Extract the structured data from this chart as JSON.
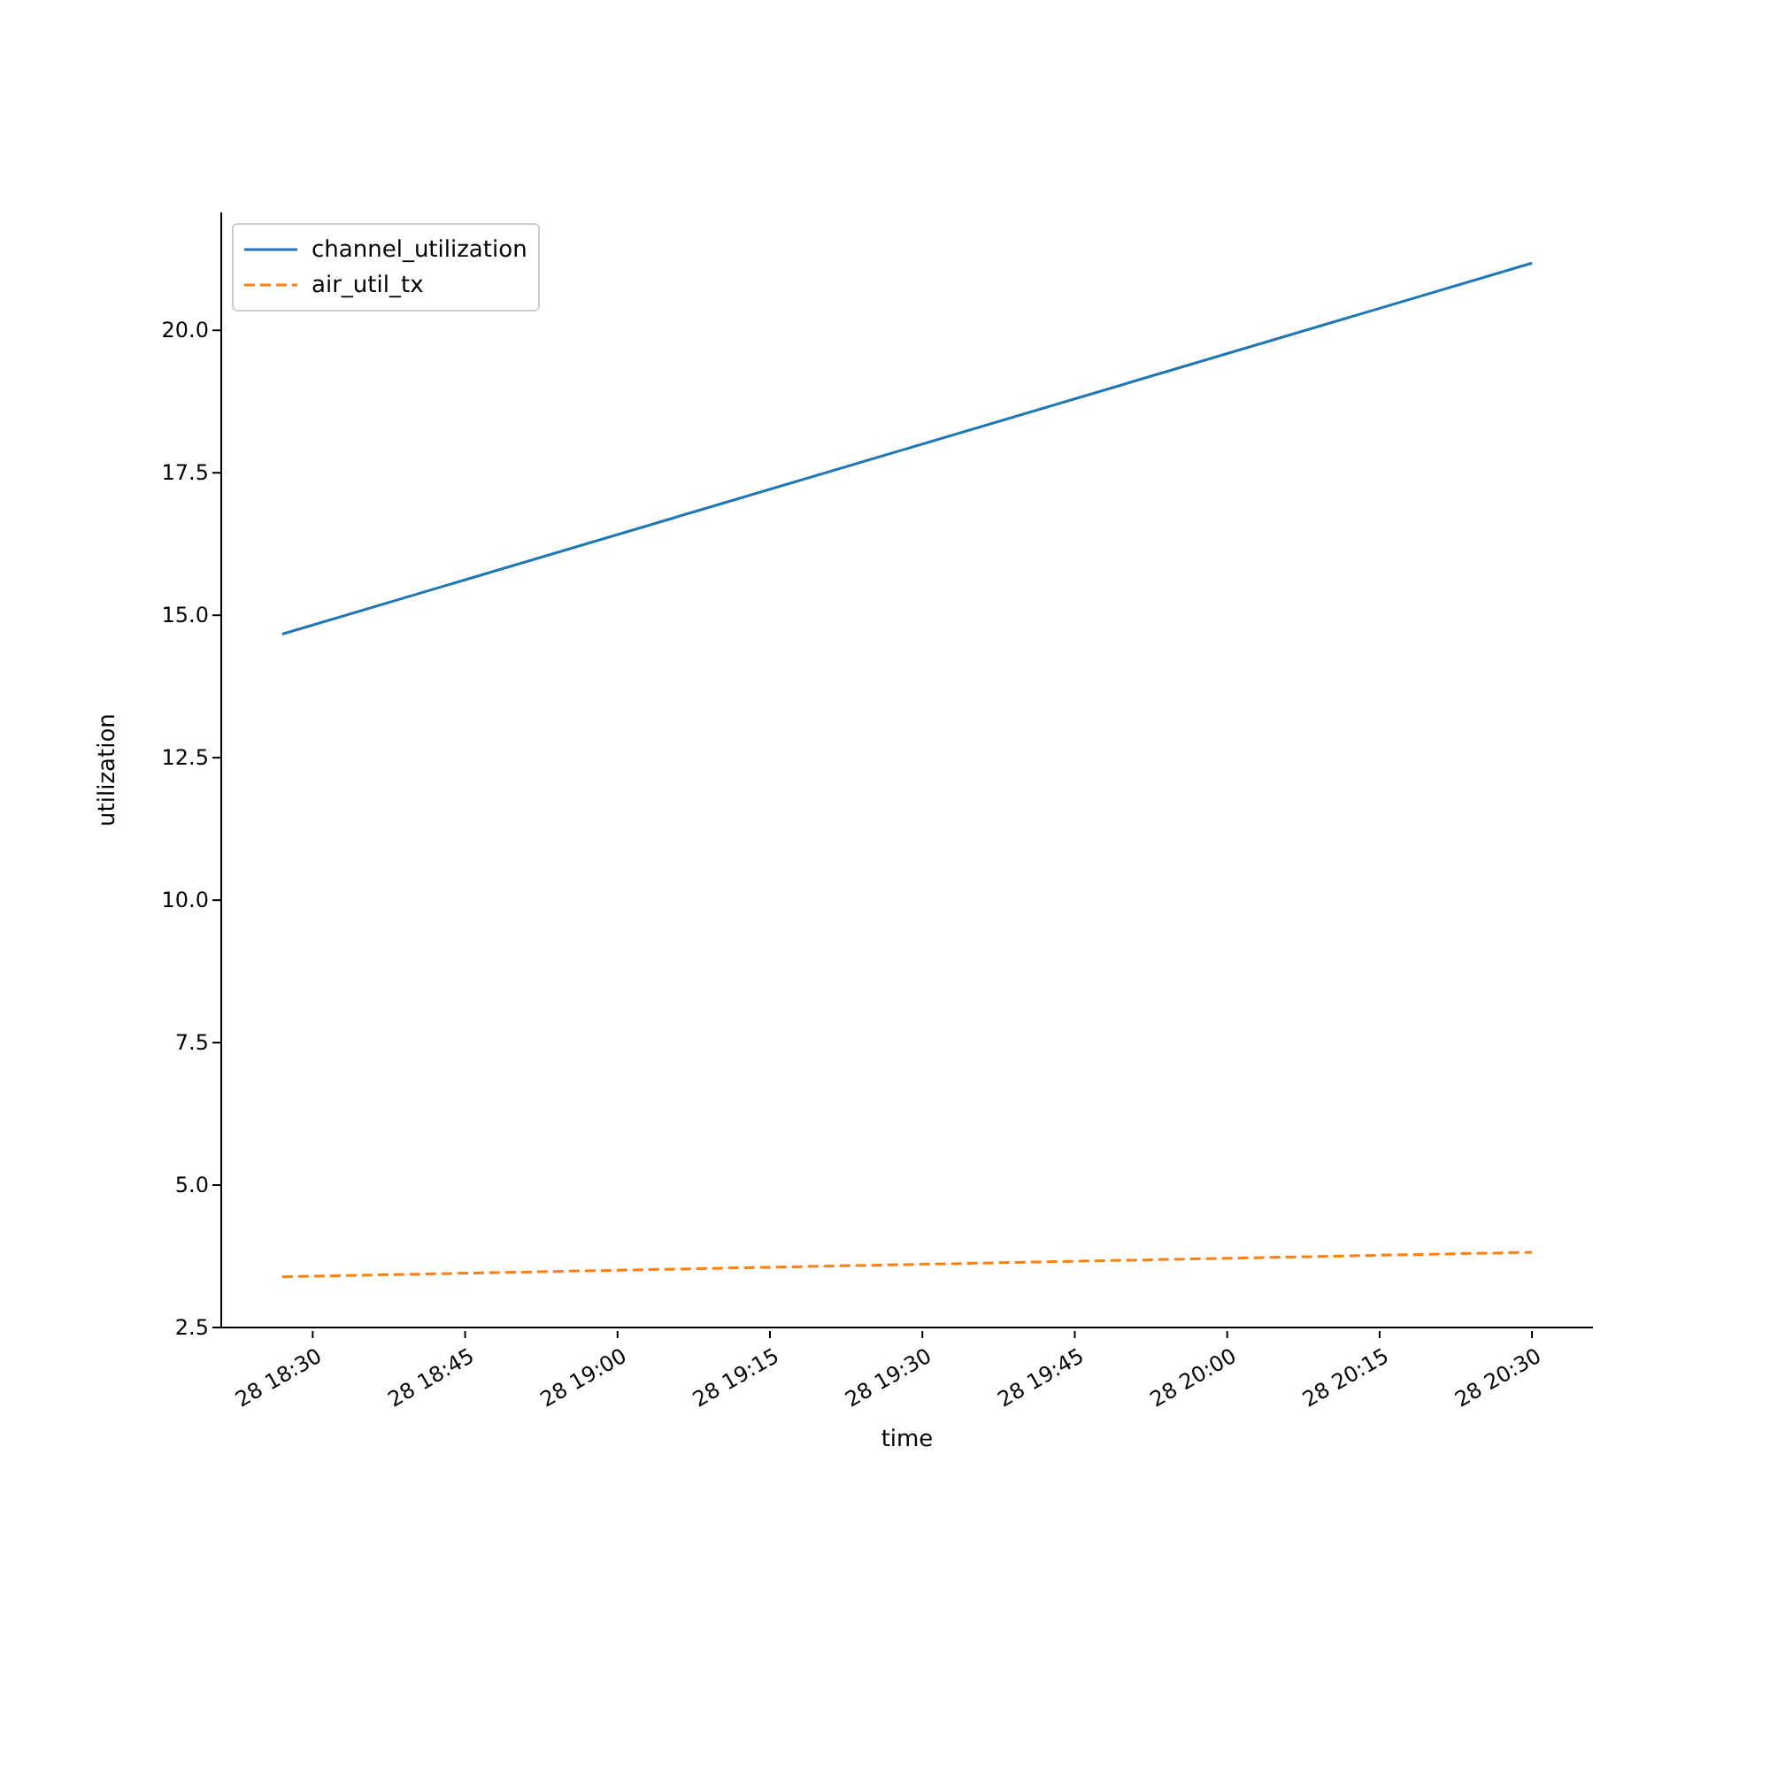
{
  "chart_data": {
    "type": "line",
    "xlabel": "time",
    "ylabel": "utilization",
    "series": [
      {
        "name": "channel_utilization",
        "color": "#1f77b4",
        "line_style": "solid",
        "x": [
          "--01-28T18:27",
          "--01-28T20:30"
        ],
        "values": [
          14.67,
          21.18
        ]
      },
      {
        "name": "air_util_tx",
        "color": "#ff7f0e",
        "line_style": "dashed",
        "x": [
          "--01-28T18:27",
          "--01-28T20:30"
        ],
        "values": [
          3.39,
          3.82
        ]
      }
    ],
    "xlim": [
      "--01-28T18:21",
      "--01-28T20:36"
    ],
    "xticks": [
      {
        "value": "--01-28T18:30",
        "label": "28 18:30"
      },
      {
        "value": "--01-28T18:45",
        "label": "28 18:45"
      },
      {
        "value": "--01-28T19:00",
        "label": "28 19:00"
      },
      {
        "value": "--01-28T19:15",
        "label": "28 19:15"
      },
      {
        "value": "--01-28T19:30",
        "label": "28 19:30"
      },
      {
        "value": "--01-28T19:45",
        "label": "28 19:45"
      },
      {
        "value": "--01-28T20:00",
        "label": "28 20:00"
      },
      {
        "value": "--01-28T20:15",
        "label": "28 20:15"
      },
      {
        "value": "--01-28T20:30",
        "label": "28 20:30"
      }
    ],
    "ylim": [
      2.5,
      22.07
    ],
    "yticks": [
      {
        "value": 2.5,
        "label": "2.5"
      },
      {
        "value": 5,
        "label": "5.0"
      },
      {
        "value": 7.5,
        "label": "7.5"
      },
      {
        "value": 10,
        "label": "10.0"
      },
      {
        "value": 12.5,
        "label": "12.5"
      },
      {
        "value": 15,
        "label": "15.0"
      },
      {
        "value": 17.5,
        "label": "17.5"
      },
      {
        "value": 20,
        "label": "20.0"
      }
    ],
    "grid": false,
    "legend": "top left",
    "marker": "none"
  }
}
